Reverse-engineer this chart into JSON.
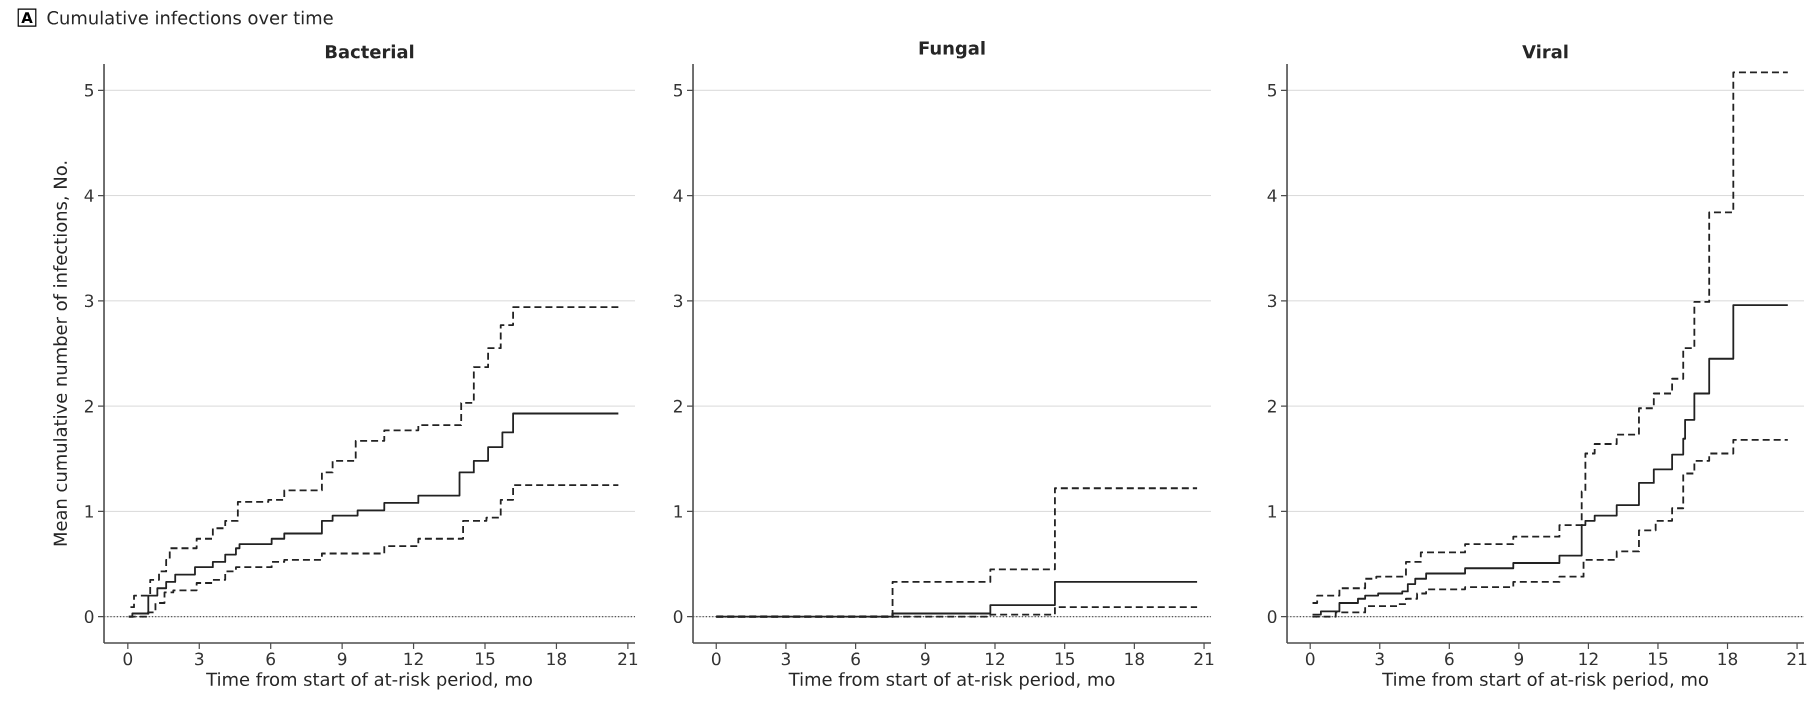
{
  "chart_data": [
    {
      "type": "step",
      "title": "Bacterial",
      "xlabel": "Time from start of at-risk period, mo",
      "ylabel": "Mean cumulative number of infections, No.",
      "annotations": [
        "A",
        "Cumulative infections over time"
      ],
      "xlim": [
        -1,
        21.3
      ],
      "ylim": [
        -0.25,
        5.25
      ],
      "xticks": [
        0,
        3,
        6,
        9,
        12,
        15,
        18,
        21
      ],
      "yticks": [
        0,
        1,
        2,
        3,
        4,
        5
      ],
      "grid": "y",
      "ref_lines": [
        {
          "axis": "y",
          "value": 0,
          "line_style": "dotted",
          "color": "#555555"
        }
      ],
      "series": [
        {
          "color": "#222222",
          "line_style": "solid",
          "x": [
            0.04,
            0.19,
            0.86,
            1.24,
            1.61,
            1.99,
            2.82,
            3.57,
            4.09,
            4.54,
            4.69,
            6.04,
            6.57,
            8.15,
            8.6,
            9.65,
            10.77,
            12.2,
            13.93,
            14.53,
            15.13,
            15.73,
            16.18,
            20.6
          ],
          "values": [
            0,
            0.03,
            0.2,
            0.27,
            0.33,
            0.4,
            0.47,
            0.52,
            0.59,
            0.65,
            0.69,
            0.74,
            0.79,
            0.91,
            0.96,
            1.01,
            1.08,
            1.15,
            1.37,
            1.48,
            1.61,
            1.75,
            1.93,
            1.93
          ]
        },
        {
          "color": "#222222",
          "line_style": "dashed",
          "x": [
            0.11,
            0.26,
            0.94,
            1.31,
            1.61,
            1.76,
            2.89,
            3.57,
            4.09,
            4.62,
            5.9,
            6.57,
            8.15,
            8.6,
            9.57,
            10.77,
            12.2,
            14.0,
            14.53,
            15.13,
            15.66,
            16.18,
            20.6
          ],
          "values": [
            0.09,
            0.2,
            0.35,
            0.43,
            0.54,
            0.65,
            0.74,
            0.84,
            0.91,
            1.09,
            1.11,
            1.2,
            1.37,
            1.48,
            1.67,
            1.77,
            1.82,
            2.03,
            2.37,
            2.55,
            2.77,
            2.94,
            2.94
          ]
        },
        {
          "color": "#222222",
          "line_style": "dashed",
          "x": [
            0.04,
            0.86,
            1.16,
            1.54,
            1.91,
            2.89,
            3.57,
            4.09,
            4.54,
            6.04,
            6.57,
            8.15,
            10.77,
            12.2,
            14.08,
            15.06,
            15.66,
            16.18,
            20.6
          ],
          "values": [
            0,
            0.04,
            0.13,
            0.23,
            0.25,
            0.32,
            0.35,
            0.43,
            0.47,
            0.52,
            0.54,
            0.6,
            0.67,
            0.74,
            0.91,
            0.94,
            1.11,
            1.25,
            1.25
          ]
        }
      ]
    },
    {
      "type": "step",
      "title": "Fungal",
      "xlabel": "Time from start of at-risk period, mo",
      "xlim": [
        -1,
        21.3
      ],
      "ylim": [
        -0.25,
        5.25
      ],
      "xticks": [
        0,
        3,
        6,
        9,
        12,
        15,
        18,
        21
      ],
      "yticks": [
        0,
        1,
        2,
        3,
        4,
        5
      ],
      "grid": "y",
      "ref_lines": [
        {
          "axis": "y",
          "value": 0,
          "line_style": "dotted",
          "color": "#555555"
        }
      ],
      "series": [
        {
          "color": "#222222",
          "line_style": "solid",
          "x": [
            0.0,
            7.59,
            11.8,
            14.58,
            20.7
          ],
          "values": [
            0,
            0.03,
            0.11,
            0.33,
            0.33
          ]
        },
        {
          "color": "#222222",
          "line_style": "dashed",
          "x": [
            0.0,
            7.59,
            11.8,
            14.58,
            20.7
          ],
          "values": [
            0,
            0.33,
            0.45,
            1.22,
            1.22
          ]
        },
        {
          "color": "#222222",
          "line_style": "dashed",
          "x": [
            0.0,
            11.8,
            14.58,
            20.7
          ],
          "values": [
            0,
            0.02,
            0.09,
            0.09
          ]
        }
      ]
    },
    {
      "type": "step",
      "title": "Viral",
      "xlabel": "Time from start of at-risk period, mo",
      "xlim": [
        -1,
        21.3
      ],
      "ylim": [
        -0.25,
        5.25
      ],
      "xticks": [
        0,
        3,
        6,
        9,
        12,
        15,
        18,
        21
      ],
      "yticks": [
        0,
        1,
        2,
        3,
        4,
        5
      ],
      "grid": "y",
      "ref_lines": [
        {
          "axis": "y",
          "value": 0,
          "line_style": "dotted",
          "color": "#555555"
        }
      ],
      "series": [
        {
          "color": "#222222",
          "line_style": "solid",
          "x": [
            0.1,
            0.46,
            1.26,
            2.06,
            2.37,
            2.93,
            3.97,
            4.21,
            4.53,
            5.0,
            6.68,
            8.76,
            10.75,
            11.71,
            11.87,
            12.27,
            13.22,
            14.18,
            14.82,
            15.61,
            16.09,
            16.17,
            16.57,
            17.21,
            18.25,
            20.6
          ],
          "values": [
            0.02,
            0.05,
            0.13,
            0.17,
            0.2,
            0.22,
            0.24,
            0.31,
            0.36,
            0.41,
            0.46,
            0.51,
            0.58,
            0.87,
            0.91,
            0.96,
            1.06,
            1.27,
            1.4,
            1.54,
            1.69,
            1.87,
            2.12,
            2.45,
            2.96,
            2.96
          ]
        },
        {
          "color": "#222222",
          "line_style": "dashed",
          "x": [
            0.1,
            0.3,
            1.26,
            2.37,
            2.85,
            4.13,
            4.77,
            6.68,
            8.76,
            10.75,
            11.71,
            11.87,
            12.27,
            13.22,
            14.18,
            14.82,
            15.61,
            16.09,
            16.57,
            17.21,
            18.25,
            20.6
          ],
          "values": [
            0.13,
            0.2,
            0.27,
            0.36,
            0.38,
            0.52,
            0.61,
            0.69,
            0.76,
            0.87,
            1.19,
            1.55,
            1.64,
            1.73,
            1.98,
            2.12,
            2.26,
            2.55,
            2.99,
            3.84,
            5.17,
            5.17
          ]
        },
        {
          "color": "#222222",
          "line_style": "dashed",
          "x": [
            0.1,
            1.1,
            2.37,
            3.81,
            4.13,
            4.61,
            5.0,
            6.68,
            8.76,
            10.75,
            11.79,
            13.22,
            14.18,
            14.9,
            15.61,
            16.09,
            16.57,
            17.21,
            18.25,
            20.6
          ],
          "values": [
            0,
            0.04,
            0.1,
            0.12,
            0.17,
            0.22,
            0.26,
            0.28,
            0.33,
            0.38,
            0.54,
            0.62,
            0.82,
            0.91,
            1.03,
            1.36,
            1.48,
            1.55,
            1.68,
            1.68
          ]
        }
      ]
    }
  ]
}
